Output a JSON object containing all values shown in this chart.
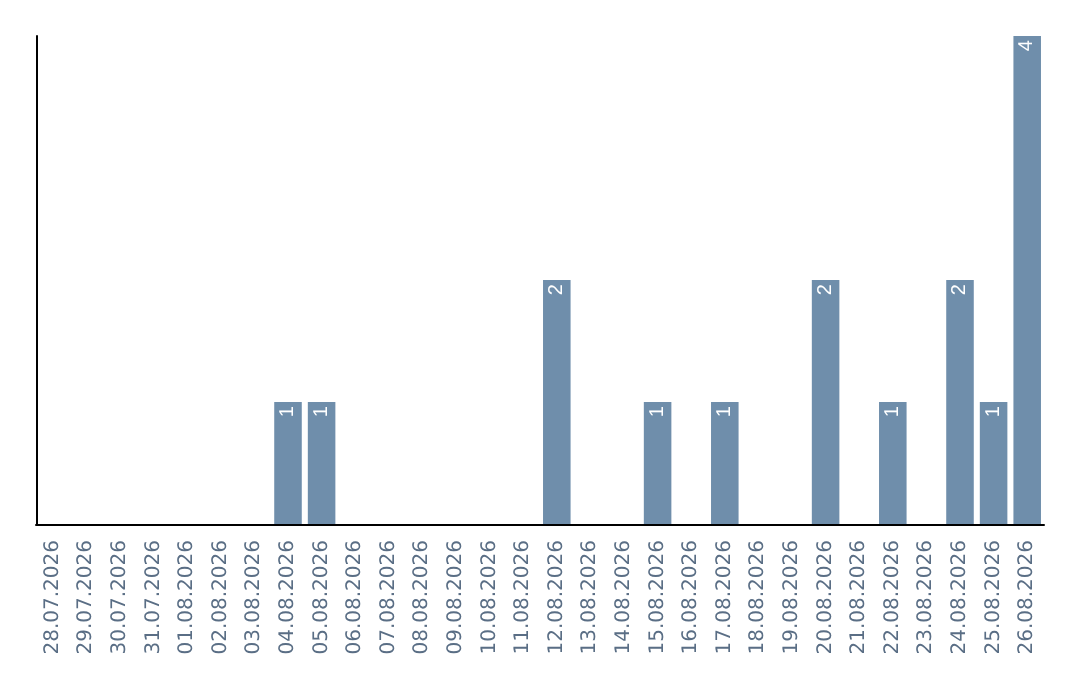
{
  "chart_data": {
    "type": "bar",
    "color": "#6f8eab",
    "tick_labels": "x",
    "categories": [
      "28.07.2026",
      "29.07.2026",
      "30.07.2026",
      "31.07.2026",
      "01.08.2026",
      "02.08.2026",
      "03.08.2026",
      "04.08.2026",
      "05.08.2026",
      "06.08.2026",
      "07.08.2026",
      "08.08.2026",
      "09.08.2026",
      "10.08.2026",
      "11.08.2026",
      "12.08.2026",
      "13.08.2026",
      "14.08.2026",
      "15.08.2026",
      "16.08.2026",
      "17.08.2026",
      "18.08.2026",
      "19.08.2026",
      "20.08.2026",
      "21.08.2026",
      "22.08.2026",
      "23.08.2026",
      "24.08.2026",
      "25.08.2026",
      "26.08.2026"
    ],
    "values": [
      0,
      0,
      0,
      0,
      0,
      0,
      0,
      1,
      1,
      0,
      0,
      0,
      0,
      0,
      0,
      2,
      0,
      0,
      1,
      0,
      1,
      0,
      0,
      2,
      0,
      1,
      0,
      2,
      1,
      4
    ],
    "value_labels": [
      null,
      null,
      null,
      null,
      null,
      null,
      null,
      "1",
      "1",
      null,
      null,
      null,
      null,
      null,
      null,
      "2",
      null,
      null,
      "1",
      null,
      "1",
      null,
      null,
      "2",
      null,
      "1",
      null,
      "2",
      "1",
      "4"
    ],
    "grid": false
  }
}
